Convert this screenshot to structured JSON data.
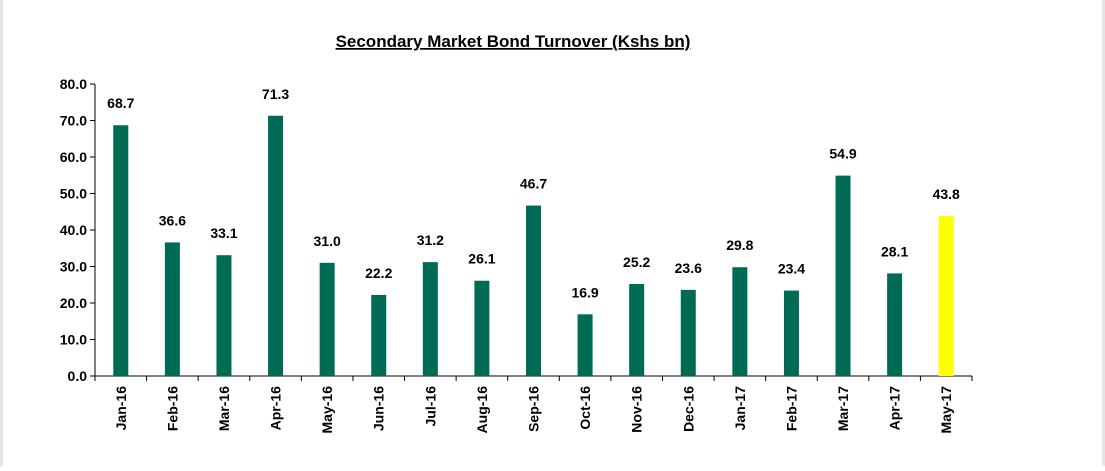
{
  "chart_data": {
    "type": "bar",
    "title": "Secondary Market Bond Turnover (Kshs bn)",
    "xlabel": "",
    "ylabel": "",
    "ylim": [
      0,
      80
    ],
    "yticks": [
      "0.0",
      "10.0",
      "20.0",
      "30.0",
      "40.0",
      "50.0",
      "60.0",
      "70.0",
      "80.0"
    ],
    "grid": false,
    "legend": "none",
    "categories": [
      "Jan-16",
      "Feb-16",
      "Mar-16",
      "Apr-16",
      "May-16",
      "Jun-16",
      "Jul-16",
      "Aug-16",
      "Sep-16",
      "Oct-16",
      "Nov-16",
      "Dec-16",
      "Jan-17",
      "Feb-17",
      "Mar-17",
      "Apr-17",
      "May-17"
    ],
    "values": [
      68.7,
      36.6,
      33.1,
      71.3,
      31.0,
      22.2,
      31.2,
      26.1,
      46.7,
      16.9,
      25.2,
      23.6,
      29.8,
      23.4,
      54.9,
      28.1,
      43.8
    ],
    "labels": [
      "68.7",
      "36.6",
      "33.1",
      "71.3",
      "31.0",
      "22.2",
      "31.2",
      "26.1",
      "46.7",
      "16.9",
      "25.2",
      "23.6",
      "29.8",
      "23.4",
      "54.9",
      "28.1",
      "43.8"
    ],
    "colors": {
      "bar": "#006b54",
      "highlight": "#ffff00"
    },
    "highlight_index": 16
  }
}
